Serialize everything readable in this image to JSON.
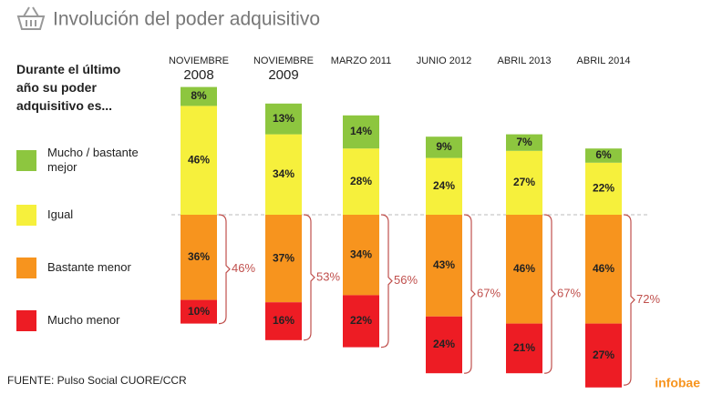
{
  "chart_data": {
    "type": "bar",
    "title": "Involución del poder adquisitivo",
    "legend_title": "Durante el último año su poder adquisitivo es...",
    "categories": [
      "NOVIEMBRE 2008",
      "NOVIEMBRE 2009",
      "MARZO 2011",
      "JUNIO 2012",
      "ABRIL 2013",
      "ABRIL 2014"
    ],
    "series": [
      {
        "name": "Mucho / bastante mejor",
        "color": "#8dc63f",
        "side": "up",
        "values": [
          8,
          13,
          14,
          9,
          7,
          6
        ],
        "value_labels": [
          "8%",
          "13%",
          "14%",
          "9%",
          "7%",
          "6%"
        ]
      },
      {
        "name": "Igual",
        "color": "#f6f03c",
        "side": "up",
        "values": [
          46,
          34,
          28,
          24,
          27,
          22
        ],
        "value_labels": [
          "46%",
          "34%",
          "28%",
          "24%",
          "27%",
          "22%"
        ]
      },
      {
        "name": "Bastante menor",
        "color": "#f7941e",
        "side": "down",
        "values": [
          36,
          37,
          34,
          43,
          46,
          46
        ],
        "value_labels": [
          "36%",
          "37%",
          "34%",
          "43%",
          "46%",
          "46%"
        ]
      },
      {
        "name": "Mucho menor",
        "color": "#ed1c24",
        "side": "down",
        "values": [
          10,
          16,
          22,
          24,
          21,
          27
        ],
        "value_labels": [
          "10%",
          "16%",
          "22%",
          "24%",
          "21%",
          "27%"
        ]
      }
    ],
    "bracket_values": [
      46,
      53,
      56,
      67,
      67,
      72
    ],
    "bracket_labels": [
      "46%",
      "53%",
      "56%",
      "67%",
      "67%",
      "72%"
    ],
    "source": "FUENTE: Pulso Social CUORE/CCR",
    "brand": "infobae"
  }
}
